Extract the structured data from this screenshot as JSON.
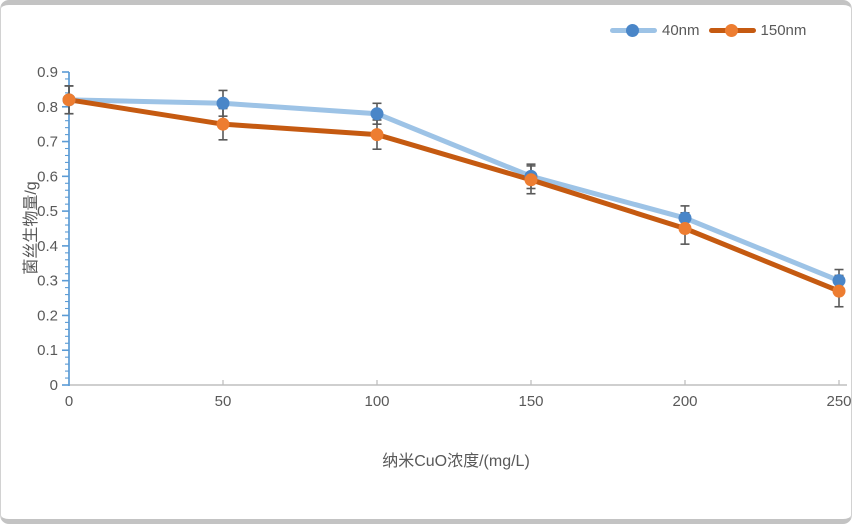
{
  "frame": {
    "background": "#ffffff",
    "border_color": "#c3c3c3"
  },
  "legend": {
    "position": "top-right",
    "text_color": "#595959",
    "items": [
      {
        "label": "40nm",
        "line_color": "#9DC3E6",
        "marker_color": "#4A86C8"
      },
      {
        "label": "150nm",
        "line_color": "#C55A11",
        "marker_color": "#ED7D31"
      }
    ]
  },
  "chart_data": {
    "type": "line",
    "title": "",
    "xlabel": "纳米CuO浓度/(mg/L)",
    "ylabel": "菌丝生物量/g",
    "x": [
      0,
      50,
      100,
      150,
      200,
      250
    ],
    "series": [
      {
        "name": "40nm",
        "values": [
          0.82,
          0.81,
          0.78,
          0.6,
          0.48,
          0.3
        ],
        "errors": [
          0.04,
          0.037,
          0.03,
          0.035,
          0.035,
          0.032
        ],
        "line_color": "#9DC3E6",
        "marker_color": "#4A86C8"
      },
      {
        "name": "150nm",
        "values": [
          0.82,
          0.75,
          0.72,
          0.59,
          0.45,
          0.27
        ],
        "errors": [
          0.04,
          0.045,
          0.042,
          0.04,
          0.045,
          0.045
        ],
        "line_color": "#C55A11",
        "marker_color": "#ED7D31"
      }
    ],
    "xlim": [
      0,
      250
    ],
    "ylim": [
      0,
      0.9
    ],
    "x_ticks": [
      0,
      50,
      100,
      150,
      200,
      250
    ],
    "y_ticks": [
      0,
      0.1,
      0.2,
      0.3,
      0.4,
      0.5,
      0.6,
      0.7,
      0.8,
      0.9
    ],
    "y_minor_tick_step": 0.02,
    "grid": false,
    "legend_position": "top-right",
    "error_bar_color": "#595959",
    "axis_colors": {
      "y_axis": "#5B9BD5",
      "x_axis": "#BFBFBF",
      "tick_label": "#595959",
      "title": "#595959"
    }
  }
}
